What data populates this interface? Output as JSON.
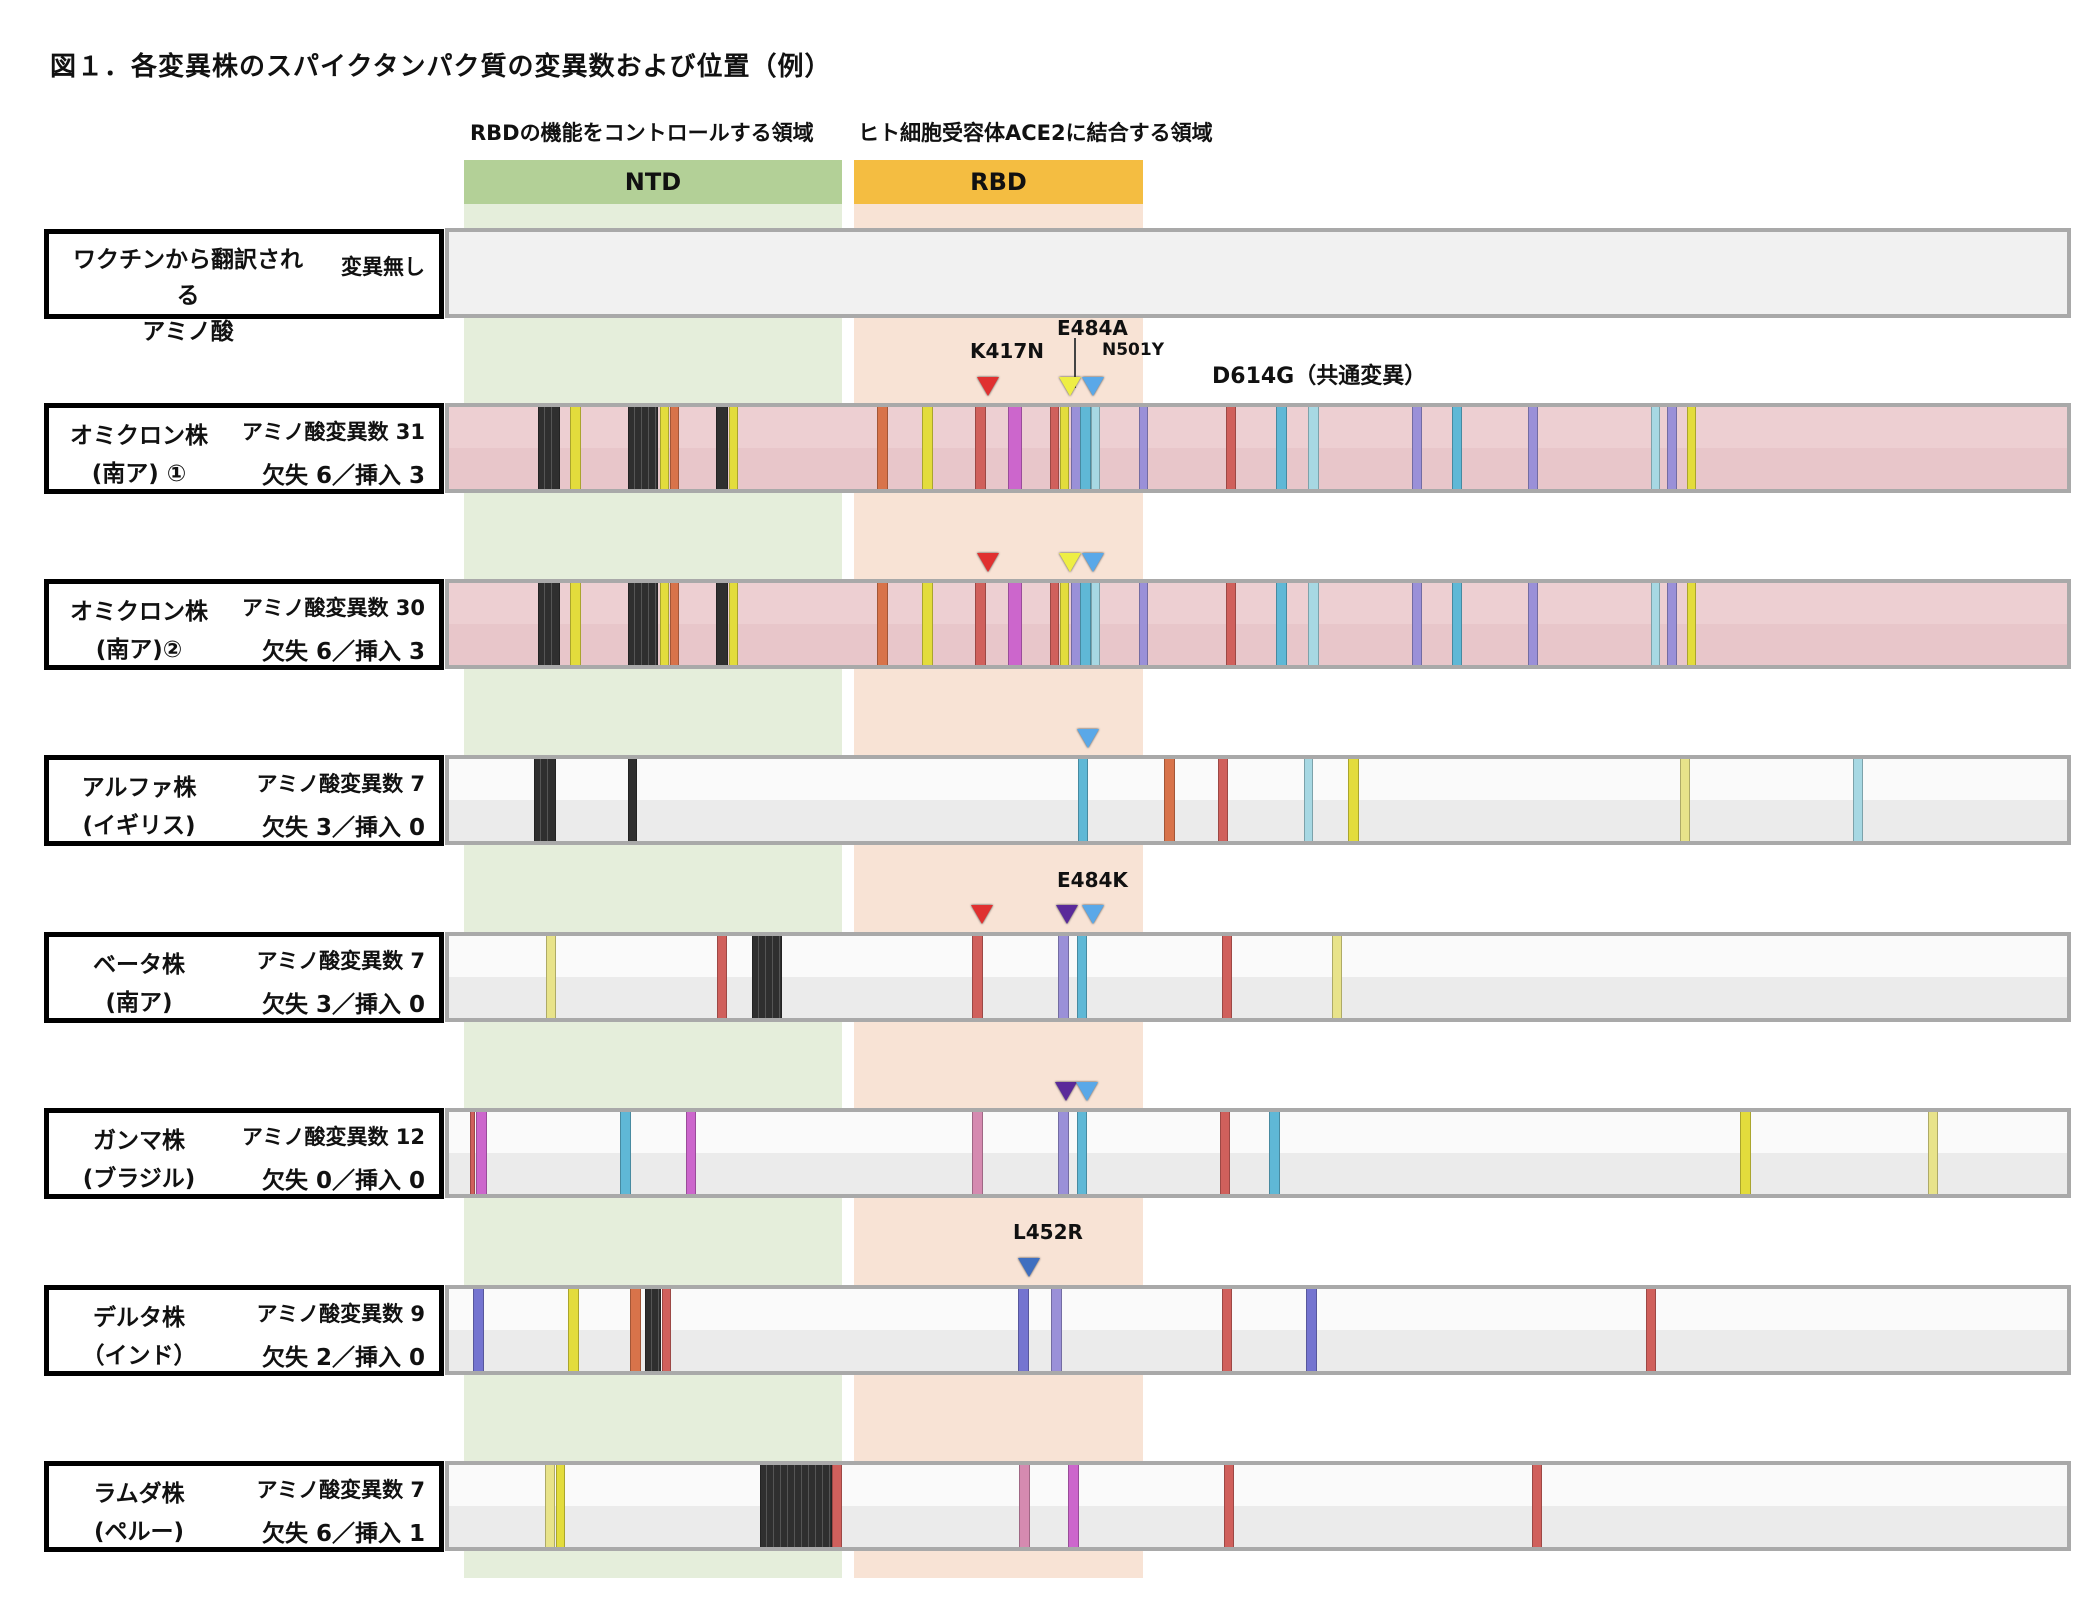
{
  "title": "図１．各変異株のスパイクタンパク質の変異数および位置（例）",
  "regions": {
    "ntd": {
      "caption": "RBDの機能をコントロールする領域",
      "label": "NTD",
      "head_color": "#b3d097",
      "band_color": "#e5eedb"
    },
    "rbd": {
      "caption": "ヒト細胞受容体ACE2に結合する領域",
      "label": "RBD",
      "head_color": "#f4bd41",
      "band_color": "#f8e3d5"
    }
  },
  "reference": {
    "name": "ワクチンから翻訳される\nアミノ酸",
    "note": "変異無し"
  },
  "annotations": {
    "k417n": "K417N",
    "e484a": "E484A",
    "n501y": "N501Y",
    "d614g": "D614G（共通変異）",
    "e484k": "E484K",
    "l452r": "L452R"
  },
  "colors": {
    "black": "#2f2f2f",
    "yellow": "#e3dc3c",
    "orange": "#d8734a",
    "red": "#d0605c",
    "pink": "#d58ab0",
    "magenta": "#cc66cc",
    "lav": "#9a90d8",
    "blue": "#5fb8d6",
    "lightblue": "#a7d8e3",
    "paleyellow": "#e8e38a",
    "indigo": "#7474d0",
    "tri_red": "#e03030",
    "tri_yellow": "#eeee44",
    "tri_blue": "#5aa8e8",
    "tri_purple": "#5a2a9a",
    "tri_steel": "#3f6fc0"
  },
  "variants": [
    {
      "name": "オミクロン株",
      "origin": "(南ア) ①",
      "mut_label": "アミノ酸変異数",
      "mut_count": "31",
      "del_label": "欠失",
      "del_count": "6",
      "ins_label": "挿入",
      "ins_count": "3",
      "sep": "／"
    },
    {
      "name": "オミクロン株",
      "origin": "(南ア)②",
      "mut_label": "アミノ酸変異数",
      "mut_count": "30",
      "del_label": "欠失",
      "del_count": "6",
      "ins_label": "挿入",
      "ins_count": "3",
      "sep": "／"
    },
    {
      "name": "アルファ株",
      "origin": "(イギリス)",
      "mut_label": "アミノ酸変異数",
      "mut_count": "7",
      "del_label": "欠失",
      "del_count": "3",
      "ins_label": "挿入",
      "ins_count": "0",
      "sep": "／"
    },
    {
      "name": "ベータ株",
      "origin": "(南ア)",
      "mut_label": "アミノ酸変異数",
      "mut_count": "7",
      "del_label": "欠失",
      "del_count": "3",
      "ins_label": "挿入",
      "ins_count": "0",
      "sep": "／"
    },
    {
      "name": "ガンマ株",
      "origin": "(ブラジル)",
      "mut_label": "アミノ酸変異数",
      "mut_count": "12",
      "del_label": "欠失",
      "del_count": "0",
      "ins_label": "挿入",
      "ins_count": "0",
      "sep": "／"
    },
    {
      "name": "デルタ株",
      "origin": "（インド）",
      "mut_label": "アミノ酸変異数",
      "mut_count": "9",
      "del_label": "欠失",
      "del_count": "2",
      "ins_label": "挿入",
      "ins_count": "0",
      "sep": "／"
    },
    {
      "name": "ラムダ株",
      "origin": "(ペルー)",
      "mut_label": "アミノ酸変異数",
      "mut_count": "7",
      "del_label": "欠失",
      "del_count": "6",
      "ins_label": "挿入",
      "ins_count": "1",
      "sep": "／"
    }
  ]
}
